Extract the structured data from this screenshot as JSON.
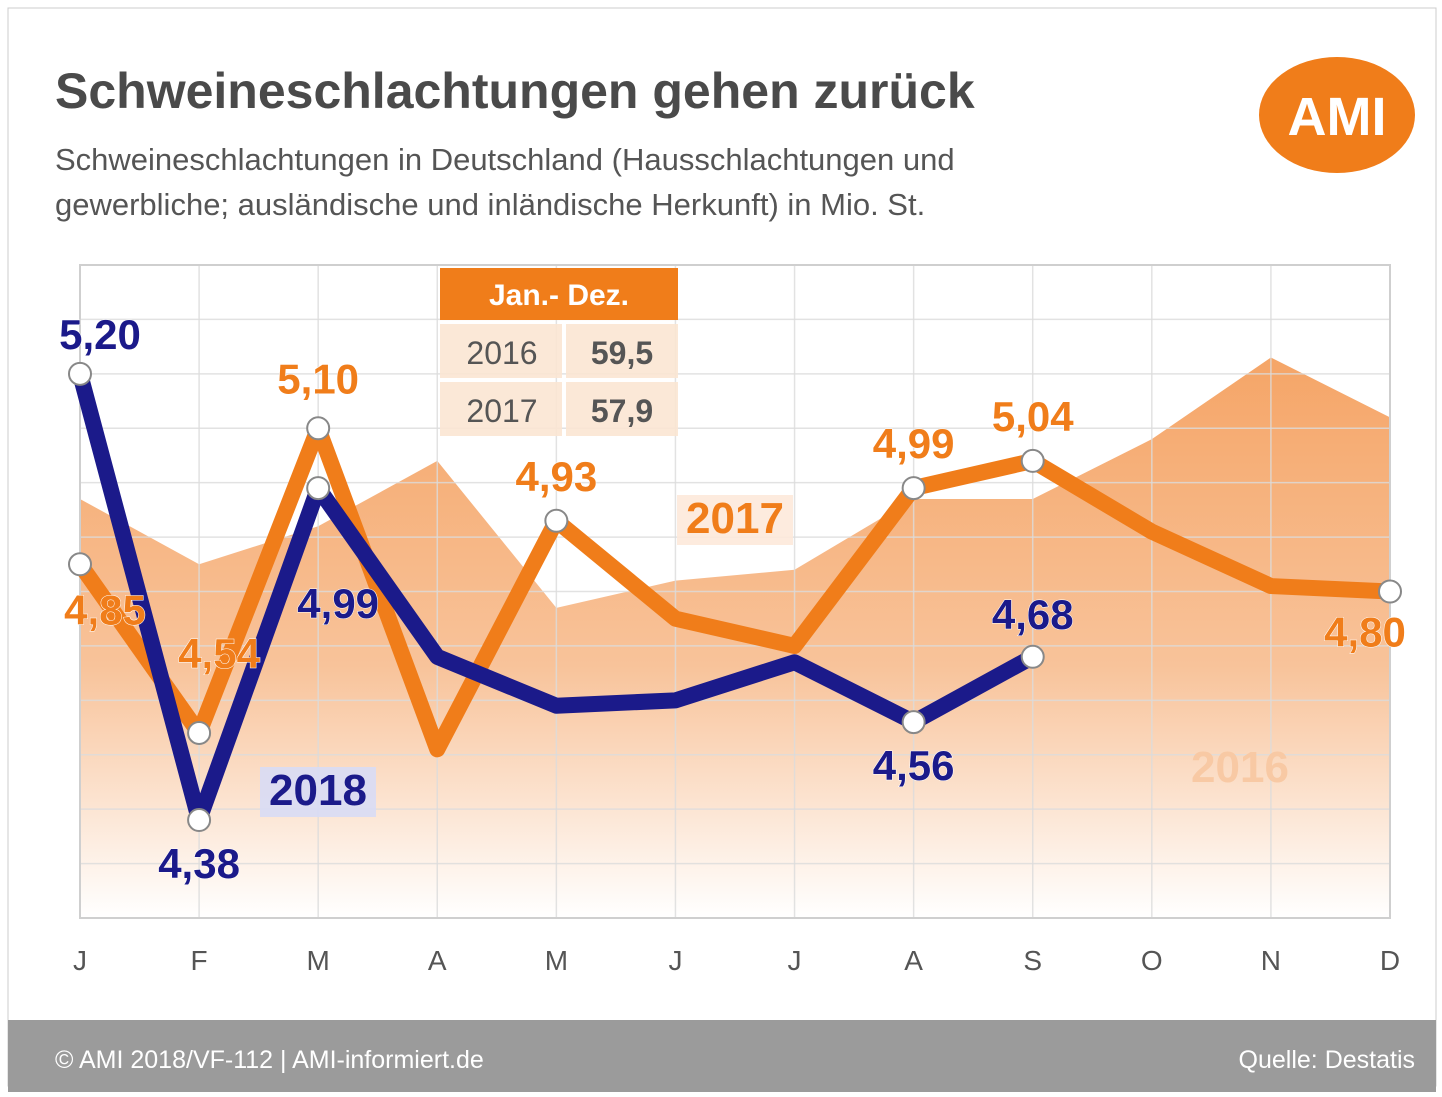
{
  "chart_data": {
    "type": "line",
    "title": "Schweineschlachtungen gehen zurück",
    "subtitle": [
      "Schweineschlachtungen in Deutschland (Hausschlachtungen und",
      "gewerbliche; ausländische und inländische Herkunft) in Mio. St."
    ],
    "logo": "AMI",
    "categories": [
      "J",
      "F",
      "M",
      "A",
      "M",
      "J",
      "J",
      "A",
      "S",
      "O",
      "N",
      "D"
    ],
    "ylim": [
      4.2,
      5.4
    ],
    "yticks": [
      4.2,
      4.3,
      4.4,
      4.5,
      4.6,
      4.7,
      4.8,
      4.9,
      5.0,
      5.1,
      5.2,
      5.3,
      5.4
    ],
    "grid": true,
    "series": [
      {
        "name": "2016",
        "color": "#f5a567",
        "style": "area",
        "values": [
          4.97,
          4.85,
          4.92,
          5.04,
          4.77,
          4.82,
          4.84,
          4.97,
          4.97,
          5.08,
          5.23,
          5.12
        ]
      },
      {
        "name": "2017",
        "color": "#f07d1a",
        "style": "line",
        "values": [
          4.85,
          4.54,
          5.1,
          4.51,
          4.93,
          4.75,
          4.7,
          4.99,
          5.04,
          4.91,
          4.81,
          4.8
        ],
        "value_labels": [
          "4,85",
          "4,54",
          "5,10",
          null,
          "4,93",
          null,
          null,
          "4,99",
          "5,04",
          null,
          null,
          "4,80"
        ]
      },
      {
        "name": "2018",
        "color": "#1b1a8a",
        "style": "line",
        "values": [
          5.2,
          4.38,
          4.99,
          4.68,
          4.59,
          4.6,
          4.67,
          4.56,
          4.68,
          null,
          null,
          null
        ],
        "value_labels": [
          "5,20",
          "4,38",
          "4,99",
          null,
          null,
          null,
          null,
          "4,56",
          "4,68",
          null,
          null,
          null
        ]
      }
    ],
    "summary": {
      "title": "Jan.- Dez.",
      "rows": [
        [
          "2016",
          "59,5"
        ],
        [
          "2017",
          "57,9"
        ]
      ]
    },
    "footer_left": "© AMI 2018/VF-112 | AMI-informiert.de",
    "footer_right": "Quelle: Destatis"
  }
}
